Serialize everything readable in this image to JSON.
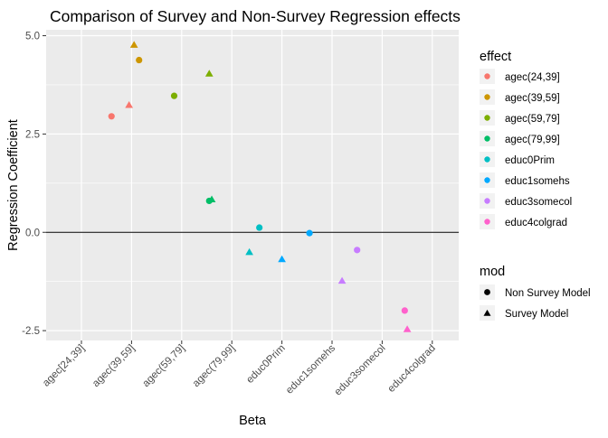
{
  "chart_data": {
    "type": "scatter",
    "title": "Comparison of Survey and Non-Survey Regression effects",
    "xlabel": "Beta",
    "ylabel": "Regression Coefficient",
    "categories": [
      "agec[24,39]",
      "agec(39,59]",
      "agec(59,79]",
      "agec(79,99]",
      "educ0Prim",
      "educ1somehs",
      "educ3somecol",
      "educ4colgrad"
    ],
    "ylim": [
      -2.75,
      5.15
    ],
    "yticks": [
      -2.5,
      0.0,
      2.5,
      5.0
    ],
    "ytick_labels": [
      "-2.5",
      "0.0",
      "2.5",
      "5.0"
    ],
    "hline": 0,
    "grid": true,
    "series": [
      {
        "name": "Non Survey Model",
        "shape": "circle",
        "x": [
          0.6,
          1.15,
          1.85,
          2.55,
          3.55,
          4.55,
          5.5,
          6.45
        ],
        "values": [
          2.95,
          4.38,
          3.47,
          0.8,
          0.12,
          -0.02,
          -0.45,
          -1.99
        ]
      },
      {
        "name": "Survey Model",
        "shape": "triangle",
        "x": [
          0.95,
          1.05,
          2.55,
          2.6,
          3.35,
          4.0,
          5.2,
          6.5
        ],
        "values": [
          3.22,
          4.75,
          4.02,
          0.82,
          -0.52,
          -0.7,
          -1.25,
          -2.48
        ]
      }
    ],
    "legend": {
      "position": "right",
      "effect_title": "effect",
      "effects": [
        {
          "label": "agec(24,39]",
          "color": "#F8766D"
        },
        {
          "label": "agec(39,59]",
          "color": "#CD9600"
        },
        {
          "label": "agec(59,79]",
          "color": "#7CAE00"
        },
        {
          "label": "agec(79,99]",
          "color": "#00BE67"
        },
        {
          "label": "educ0Prim",
          "color": "#00BFC4"
        },
        {
          "label": "educ1somehs",
          "color": "#00A9FF"
        },
        {
          "label": "educ3somecol",
          "color": "#C77CFF"
        },
        {
          "label": "educ4colgrad",
          "color": "#FF61CC"
        }
      ],
      "mod_title": "mod",
      "mods": [
        {
          "label": "Non Survey Model",
          "shape": "circle"
        },
        {
          "label": "Survey Model",
          "shape": "triangle"
        }
      ]
    }
  }
}
